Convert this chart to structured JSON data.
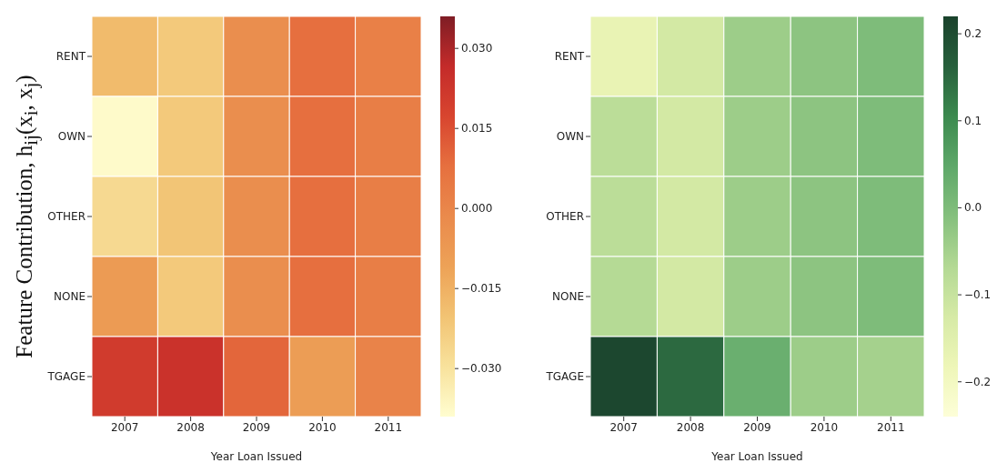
{
  "chart_data": [
    {
      "type": "heatmap",
      "ylabel": "Feature Contribution, h$_{ij}$(x$_{i}$, x$_{j}$)",
      "xlabel": "Year Loan Issued",
      "categories": [
        "2007",
        "2008",
        "2009",
        "2010",
        "2011"
      ],
      "y_categories": [
        "RENT",
        "OWN",
        "OTHER",
        "NONE",
        "TGAGE"
      ],
      "cells": [
        [
          -0.018,
          -0.022,
          -0.003,
          0.008,
          0.002
        ],
        [
          -0.038,
          -0.022,
          -0.003,
          0.008,
          0.003
        ],
        [
          -0.027,
          -0.021,
          -0.003,
          0.008,
          0.003
        ],
        [
          -0.008,
          -0.022,
          -0.003,
          0.008,
          0.003
        ],
        [
          0.021,
          0.024,
          0.01,
          -0.009,
          0.001
        ]
      ],
      "clim": [
        -0.039,
        0.036
      ],
      "cticks": [
        {
          "value": -0.03,
          "label": "−0.030"
        },
        {
          "value": -0.015,
          "label": "−0.015"
        },
        {
          "value": 0,
          "label": "0.000"
        },
        {
          "value": 0.015,
          "label": "0.015"
        },
        {
          "value": 0.03,
          "label": "0.030"
        }
      ]
    },
    {
      "type": "heatmap",
      "xlabel": "Year Loan Issued",
      "categories": [
        "2007",
        "2008",
        "2009",
        "2010",
        "2011"
      ],
      "y_categories": [
        "RENT",
        "OWN",
        "OTHER",
        "NONE",
        "TGAGE"
      ],
      "cells": [
        [
          -0.17,
          -0.12,
          -0.04,
          -0.02,
          0.0
        ],
        [
          -0.08,
          -0.12,
          -0.04,
          -0.02,
          0.0
        ],
        [
          -0.08,
          -0.12,
          -0.04,
          -0.02,
          0.0
        ],
        [
          -0.07,
          -0.12,
          -0.04,
          -0.02,
          0.0
        ],
        [
          0.21,
          0.15,
          0.03,
          -0.04,
          -0.05
        ]
      ],
      "clim": [
        -0.24,
        0.22
      ],
      "cticks": [
        {
          "value": -0.2,
          "label": "−0.2"
        },
        {
          "value": -0.1,
          "label": "−0.1"
        },
        {
          "value": 0,
          "label": "0.0"
        },
        {
          "value": 0.1,
          "label": "0.1"
        },
        {
          "value": 0.2,
          "label": "0.2"
        }
      ]
    }
  ]
}
